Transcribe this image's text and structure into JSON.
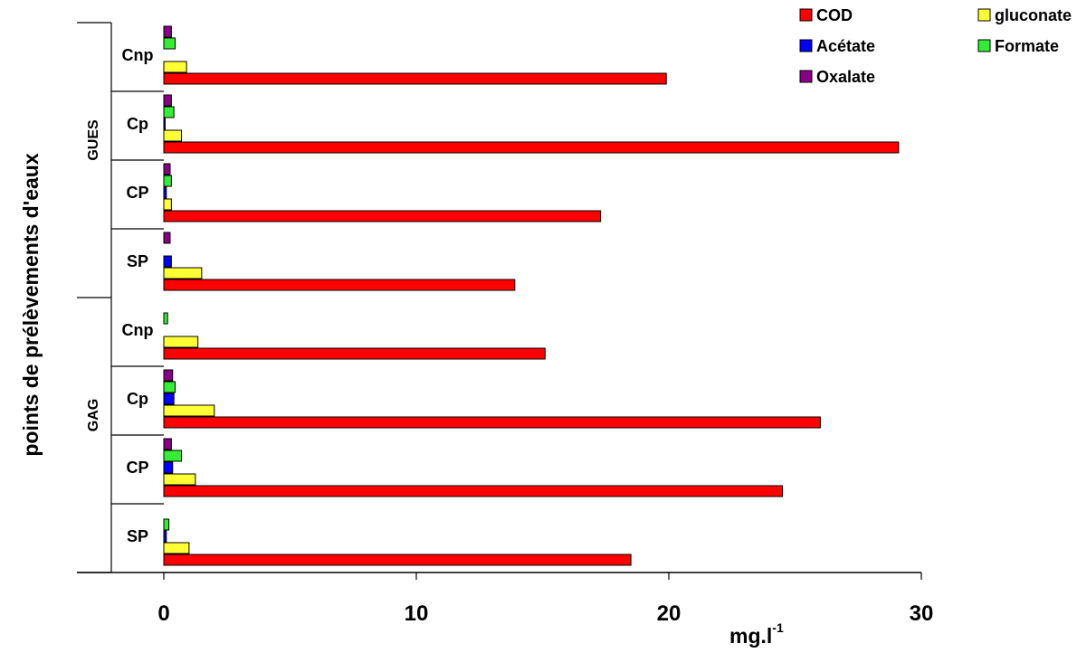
{
  "chart_data": {
    "type": "bar",
    "orientation": "horizontal",
    "xlabel": "mg.l",
    "xlabel_superscript": "-1",
    "ylabel": "points de prélèvements d'eaux",
    "xlim": [
      0,
      30
    ],
    "xticks": [
      "0",
      "10",
      "20",
      "30"
    ],
    "grid": false,
    "legend_position": "top-right",
    "groups": [
      {
        "label": "GUES",
        "categories": [
          "Cnp",
          "Cp",
          "CP",
          "SP"
        ]
      },
      {
        "label": "GAG",
        "categories": [
          "Cnp",
          "Cp",
          "CP",
          "SP"
        ]
      }
    ],
    "categories": [
      "GUES Cnp",
      "GUES Cp",
      "GUES CP",
      "GUES SP",
      "GAG Cnp",
      "GAG Cp",
      "GAG CP",
      "GAG SP"
    ],
    "series": [
      {
        "name": "COD",
        "color": "#ff0000",
        "values": [
          19.9,
          29.1,
          17.3,
          13.9,
          15.1,
          26.0,
          24.5,
          18.5
        ]
      },
      {
        "name": "gluconate",
        "color": "#ffff33",
        "values": [
          0.9,
          0.7,
          0.3,
          1.5,
          1.35,
          2.0,
          1.25,
          1.0
        ]
      },
      {
        "name": "Acétate",
        "color": "#0000ff",
        "values": [
          0,
          0.05,
          0.1,
          0.3,
          0,
          0.4,
          0.35,
          0.1
        ]
      },
      {
        "name": "Formate",
        "color": "#33ee33",
        "values": [
          0.45,
          0.4,
          0.3,
          0,
          0.15,
          0.45,
          0.7,
          0.2
        ]
      },
      {
        "name": "Oxalate",
        "color": "#880088",
        "values": [
          0.3,
          0.3,
          0.25,
          0.25,
          0,
          0.35,
          0.3,
          0
        ]
      }
    ]
  }
}
